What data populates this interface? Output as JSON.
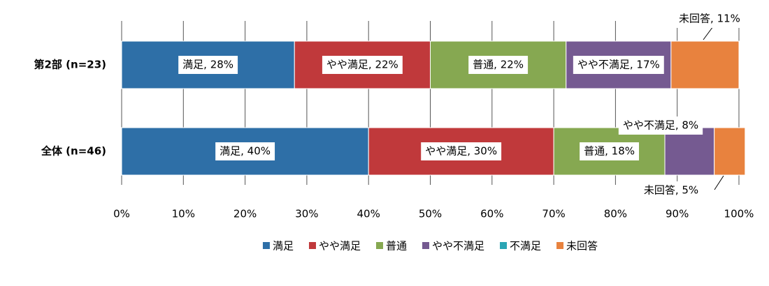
{
  "chart_data": {
    "type": "stacked-bar-horizontal",
    "categories": [
      "第2部 (n=23)",
      "全体 (n=46)"
    ],
    "series": [
      {
        "name": "満足",
        "color": "#2e6fa7",
        "values": [
          28,
          40
        ],
        "value_labels": [
          "満足, 28%",
          "満足, 40%"
        ]
      },
      {
        "name": "やや満足",
        "color": "#c0393b",
        "values": [
          22,
          30
        ],
        "value_labels": [
          "やや満足, 22%",
          "やや満足, 30%"
        ]
      },
      {
        "name": "普通",
        "color": "#86a851",
        "values": [
          22,
          18
        ],
        "value_labels": [
          "普通, 22%",
          "普通, 18%"
        ]
      },
      {
        "name": "やや不満足",
        "color": "#755a91",
        "values": [
          17,
          8
        ],
        "value_labels": [
          "やや不満足, 17%",
          "やや不満足, 8%"
        ]
      },
      {
        "name": "不満足",
        "color": "#2aa5b4",
        "values": [
          0,
          0
        ]
      },
      {
        "name": "未回答",
        "color": "#e8823e",
        "values": [
          11,
          5
        ],
        "value_labels": [
          "未回答, 11%",
          "未回答, 5%"
        ]
      }
    ],
    "xlim": [
      0,
      100
    ],
    "xticks": [
      {
        "value": 0,
        "label": "0%"
      },
      {
        "value": 10,
        "label": "10%"
      },
      {
        "value": 20,
        "label": "20%"
      },
      {
        "value": 30,
        "label": "30%"
      },
      {
        "value": 40,
        "label": "40%"
      },
      {
        "value": 50,
        "label": "50%"
      },
      {
        "value": 60,
        "label": "60%"
      },
      {
        "value": 70,
        "label": "70%"
      },
      {
        "value": 80,
        "label": "80%"
      },
      {
        "value": 90,
        "label": "90%"
      },
      {
        "value": 100,
        "label": "100%"
      }
    ],
    "grid": true,
    "legend": "bottom"
  }
}
